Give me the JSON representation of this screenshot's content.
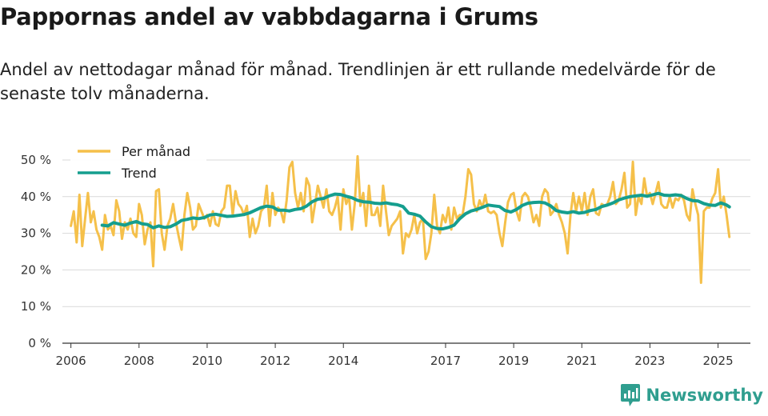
{
  "title": "Pappornas andel av vabbdagarna i Grums",
  "subtitle": "Andel av nettodagar månad för månad. Trendlinjen är ett rullande medelvärde för de senaste tolv månaderna.",
  "brand": "Newsworthy",
  "colors": {
    "monthly": "#f5c04a",
    "trend": "#159e8e",
    "grid": "#d9d9d9",
    "axis": "#333333",
    "brand": "#2f9e8f"
  },
  "chart_data": {
    "type": "line",
    "title": "Pappornas andel av vabbdagarna i Grums",
    "xlabel": "",
    "ylabel": "",
    "ylim": [
      0,
      50
    ],
    "xlim": [
      2005.75,
      2025.95
    ],
    "y_ticks": [
      0,
      10,
      20,
      30,
      40,
      50
    ],
    "y_tick_labels": [
      "0 %",
      "10 %",
      "20 %",
      "30 %",
      "40 %",
      "50 %"
    ],
    "x_ticks": [
      2006,
      2008,
      2010,
      2012,
      2014,
      2017,
      2019,
      2021,
      2023,
      2025
    ],
    "x_tick_labels": [
      "2006",
      "2008",
      "2010",
      "2012",
      "2014",
      "2017",
      "2019",
      "2021",
      "2023",
      "2025"
    ],
    "legend_position": "top-left",
    "series": [
      {
        "name": "Per månad",
        "color": "#f5c04a",
        "x": [
          2006.0,
          2006.083,
          2006.167,
          2006.25,
          2006.333,
          2006.417,
          2006.5,
          2006.583,
          2006.667,
          2006.75,
          2006.833,
          2006.917,
          2007.0,
          2007.083,
          2007.167,
          2007.25,
          2007.333,
          2007.417,
          2007.5,
          2007.583,
          2007.667,
          2007.75,
          2007.833,
          2007.917,
          2008.0,
          2008.083,
          2008.167,
          2008.25,
          2008.333,
          2008.417,
          2008.5,
          2008.583,
          2008.667,
          2008.75,
          2008.833,
          2008.917,
          2009.0,
          2009.083,
          2009.167,
          2009.25,
          2009.333,
          2009.417,
          2009.5,
          2009.583,
          2009.667,
          2009.75,
          2009.833,
          2009.917,
          2010.0,
          2010.083,
          2010.167,
          2010.25,
          2010.333,
          2010.417,
          2010.5,
          2010.583,
          2010.667,
          2010.75,
          2010.833,
          2010.917,
          2011.0,
          2011.083,
          2011.167,
          2011.25,
          2011.333,
          2011.417,
          2011.5,
          2011.583,
          2011.667,
          2011.75,
          2011.833,
          2011.917,
          2012.0,
          2012.083,
          2012.167,
          2012.25,
          2012.333,
          2012.417,
          2012.5,
          2012.583,
          2012.667,
          2012.75,
          2012.833,
          2012.917,
          2013.0,
          2013.083,
          2013.167,
          2013.25,
          2013.333,
          2013.417,
          2013.5,
          2013.583,
          2013.667,
          2013.75,
          2013.833,
          2013.917,
          2014.0,
          2014.083,
          2014.167,
          2014.25,
          2014.333,
          2014.417,
          2014.5,
          2014.583,
          2014.667,
          2014.75,
          2014.833,
          2014.917,
          2015.0,
          2015.083,
          2015.167,
          2015.25,
          2015.333,
          2015.417,
          2015.5,
          2015.583,
          2015.667,
          2015.75,
          2015.833,
          2015.917,
          2016.0,
          2016.083,
          2016.167,
          2016.25,
          2016.333,
          2016.417,
          2016.5,
          2016.583,
          2016.667,
          2016.75,
          2016.833,
          2016.917,
          2017.0,
          2017.083,
          2017.167,
          2017.25,
          2017.333,
          2017.417,
          2017.5,
          2017.583,
          2017.667,
          2017.75,
          2017.833,
          2017.917,
          2018.0,
          2018.083,
          2018.167,
          2018.25,
          2018.333,
          2018.417,
          2018.5,
          2018.583,
          2018.667,
          2018.75,
          2018.833,
          2018.917,
          2019.0,
          2019.083,
          2019.167,
          2019.25,
          2019.333,
          2019.417,
          2019.5,
          2019.583,
          2019.667,
          2019.75,
          2019.833,
          2019.917,
          2020.0,
          2020.083,
          2020.167,
          2020.25,
          2020.333,
          2020.417,
          2020.5,
          2020.583,
          2020.667,
          2020.75,
          2020.833,
          2020.917,
          2021.0,
          2021.083,
          2021.167,
          2021.25,
          2021.333,
          2021.417,
          2021.5,
          2021.583,
          2021.667,
          2021.75,
          2021.833,
          2021.917,
          2022.0,
          2022.083,
          2022.167,
          2022.25,
          2022.333,
          2022.417,
          2022.5,
          2022.583,
          2022.667,
          2022.75,
          2022.833,
          2022.917,
          2023.0,
          2023.083,
          2023.167,
          2023.25,
          2023.333,
          2023.417,
          2023.5,
          2023.583,
          2023.667,
          2023.75,
          2023.833,
          2023.917,
          2024.0,
          2024.083,
          2024.167,
          2024.25,
          2024.333,
          2024.417,
          2024.5,
          2024.583,
          2024.667,
          2024.75,
          2024.833,
          2024.917,
          2025.0,
          2025.083,
          2025.167,
          2025.25,
          2025.333
        ],
        "values": [
          32,
          36,
          27.5,
          40.5,
          26.5,
          34,
          41,
          33,
          36,
          31,
          29,
          25.5,
          35,
          31,
          32,
          29.5,
          39,
          36,
          28.5,
          33,
          31,
          34,
          30,
          29,
          38,
          35,
          27,
          31,
          33,
          21,
          41.5,
          42,
          30,
          25.5,
          32,
          34,
          38,
          33,
          29,
          25.5,
          35,
          41,
          37,
          31,
          32,
          38,
          36,
          34,
          35,
          32,
          36,
          32.5,
          32,
          36,
          37,
          43,
          43,
          35,
          41.5,
          38,
          37,
          35,
          37.5,
          29,
          34,
          30,
          32,
          36,
          37,
          43,
          32,
          41,
          35,
          37,
          36,
          33,
          39,
          48,
          49.5,
          41,
          37,
          41,
          36,
          45,
          43,
          33,
          38,
          43,
          40,
          37,
          42,
          36,
          35,
          37,
          40,
          31,
          42,
          38,
          40,
          31,
          38,
          51,
          37.5,
          41,
          32,
          43,
          35,
          35,
          37,
          32,
          43,
          36,
          29.5,
          32,
          33,
          34,
          36,
          24.5,
          30,
          29,
          31,
          35,
          30,
          33,
          34,
          23,
          25,
          30,
          40.5,
          32,
          30,
          35,
          33,
          37,
          31,
          37,
          34,
          35,
          35,
          40,
          47.5,
          46,
          38,
          36,
          39,
          37,
          40.5,
          36,
          35.5,
          36,
          35,
          30,
          26.5,
          33,
          38.5,
          40.5,
          41,
          36,
          33.5,
          40,
          41,
          40,
          37,
          33,
          35,
          32,
          40,
          42,
          41,
          35,
          36,
          38,
          35,
          33,
          30,
          24.5,
          35,
          41,
          36,
          40,
          36,
          41,
          35,
          40,
          42,
          35.5,
          35,
          38,
          37.5,
          38,
          40,
          44,
          38,
          39,
          42,
          46.5,
          37,
          38,
          49.5,
          35,
          40,
          38,
          45,
          40,
          41,
          38,
          41,
          44,
          38,
          37,
          37,
          40,
          37,
          39.5,
          39,
          40.5,
          39,
          35,
          33.5,
          42,
          38,
          35,
          16.5,
          36,
          37,
          37,
          39.5,
          41,
          47.5,
          37,
          40,
          35,
          29
        ]
      },
      {
        "name": "Trend",
        "color": "#159e8e",
        "x": [
          2006.917,
          2007.083,
          2007.25,
          2007.417,
          2007.583,
          2007.75,
          2007.917,
          2008.083,
          2008.25,
          2008.417,
          2008.583,
          2008.75,
          2008.917,
          2009.083,
          2009.25,
          2009.417,
          2009.583,
          2009.75,
          2009.917,
          2010.083,
          2010.25,
          2010.417,
          2010.583,
          2010.75,
          2010.917,
          2011.083,
          2011.25,
          2011.417,
          2011.583,
          2011.75,
          2011.917,
          2012.083,
          2012.25,
          2012.417,
          2012.583,
          2012.75,
          2012.917,
          2013.083,
          2013.25,
          2013.417,
          2013.583,
          2013.75,
          2013.917,
          2014.083,
          2014.25,
          2014.417,
          2014.583,
          2014.75,
          2014.917,
          2015.083,
          2015.25,
          2015.417,
          2015.583,
          2015.75,
          2015.917,
          2016.083,
          2016.25,
          2016.417,
          2016.583,
          2016.75,
          2016.917,
          2017.083,
          2017.25,
          2017.417,
          2017.583,
          2017.75,
          2017.917,
          2018.083,
          2018.25,
          2018.417,
          2018.583,
          2018.75,
          2018.917,
          2019.083,
          2019.25,
          2019.417,
          2019.583,
          2019.75,
          2019.917,
          2020.083,
          2020.25,
          2020.417,
          2020.583,
          2020.75,
          2020.917,
          2021.083,
          2021.25,
          2021.417,
          2021.583,
          2021.75,
          2021.917,
          2022.083,
          2022.25,
          2022.417,
          2022.583,
          2022.75,
          2022.917,
          2023.083,
          2023.25,
          2023.417,
          2023.583,
          2023.75,
          2023.917,
          2024.083,
          2024.25,
          2024.417,
          2024.583,
          2024.75,
          2024.917,
          2025.083,
          2025.25,
          2025.333
        ],
        "values": [
          32.2,
          32,
          32.9,
          32.5,
          32.2,
          32.8,
          33.2,
          32.6,
          32.4,
          31.5,
          32,
          31.6,
          31.8,
          32.5,
          33.5,
          33.8,
          34.2,
          34,
          34.3,
          35,
          35.2,
          34.9,
          34.6,
          34.7,
          34.9,
          35.1,
          35.6,
          36.3,
          37,
          37.4,
          37.2,
          36.3,
          36.3,
          36.1,
          36.5,
          36.7,
          37.4,
          38.6,
          39.3,
          39.5,
          40.2,
          40.7,
          40.6,
          40.1,
          39.7,
          39,
          38.6,
          38.5,
          38.2,
          38.1,
          38.3,
          38,
          37.8,
          37.3,
          35.5,
          35.2,
          34.7,
          33.1,
          31.8,
          31.3,
          31.2,
          31.6,
          32.2,
          34,
          35.3,
          36.1,
          36.5,
          37.1,
          37.7,
          37.5,
          37.3,
          36.2,
          35.8,
          36.5,
          37.6,
          38.2,
          38.4,
          38.5,
          38.3,
          37.5,
          36.2,
          35.8,
          35.6,
          35.9,
          35.5,
          35.7,
          36.2,
          36.5,
          37.3,
          37.7,
          38.3,
          39.1,
          39.6,
          40,
          40.2,
          40.4,
          40.1,
          40.5,
          40.9,
          40.4,
          40.3,
          40.5,
          40.3,
          39.5,
          38.9,
          38.8,
          38.1,
          37.7,
          37.6,
          38.3,
          37.7,
          37.2
        ]
      }
    ]
  }
}
